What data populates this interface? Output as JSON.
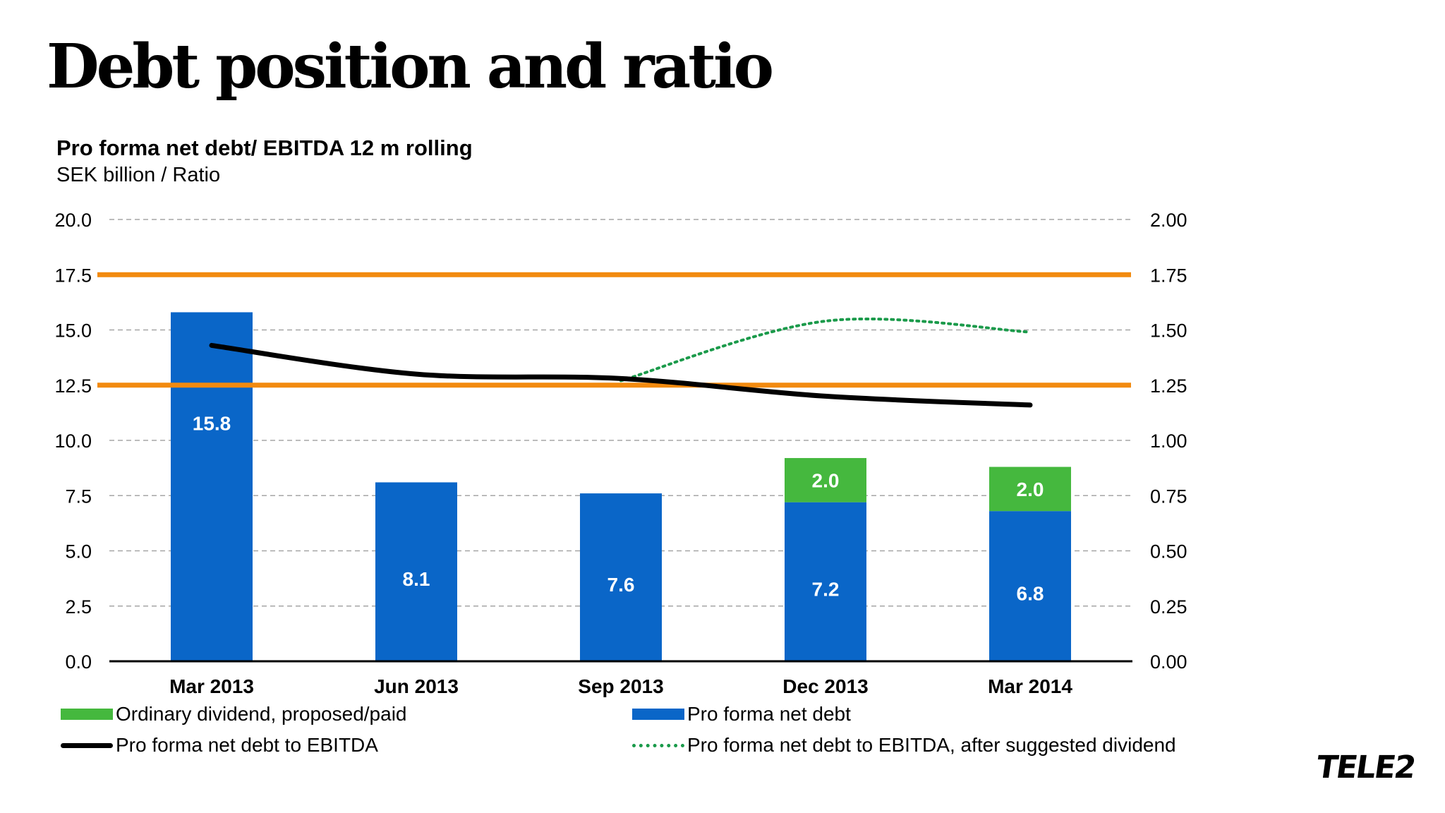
{
  "page": {
    "title": "Debt position and ratio",
    "logo_text": "TELE2"
  },
  "colors": {
    "net_debt": "#0a66c8",
    "dividend": "#45b83e",
    "ratio_line": "#000000",
    "ratio_after_dividend": "#1a9a4a",
    "threshold": "#f28a0f",
    "grid": "#a6a6a6"
  },
  "chart_data": {
    "type": "bar",
    "title": "Pro forma net debt/ EBITDA 12 m rolling",
    "subtitle": "SEK billion / Ratio",
    "categories": [
      "Mar 2013",
      "Jun 2013",
      "Sep 2013",
      "Dec 2013",
      "Mar 2014"
    ],
    "y_left": {
      "ylim": [
        0,
        20
      ],
      "ticks": [
        "0.0",
        "2.5",
        "5.0",
        "7.5",
        "10.0",
        "12.5",
        "15.0",
        "17.5",
        "20.0"
      ]
    },
    "y_right": {
      "ylim": [
        0,
        2
      ],
      "ticks": [
        "0.00",
        "0.25",
        "0.50",
        "0.75",
        "1.00",
        "1.25",
        "1.50",
        "1.75",
        "2.00"
      ]
    },
    "series": [
      {
        "name": "Pro forma net debt",
        "type": "bar",
        "axis": "left",
        "values": [
          15.8,
          8.1,
          7.6,
          7.2,
          6.8
        ],
        "labels": [
          "15.8",
          "8.1",
          "7.6",
          "7.2",
          "6.8"
        ]
      },
      {
        "name": "Ordinary dividend, proposed/paid",
        "type": "bar_stacked",
        "axis": "left",
        "values": [
          null,
          null,
          null,
          2.0,
          2.0
        ],
        "labels": [
          "",
          "",
          "",
          "2.0",
          "2.0"
        ]
      },
      {
        "name": "Pro forma net debt to EBITDA",
        "type": "line",
        "axis": "right",
        "values": [
          1.43,
          1.3,
          1.28,
          1.2,
          1.16
        ]
      },
      {
        "name": "Pro forma net debt to EBITDA, after suggested dividend",
        "type": "line_dotted",
        "axis": "right",
        "values": [
          null,
          null,
          1.27,
          1.54,
          1.49
        ]
      }
    ],
    "reference_lines": [
      {
        "axis": "right",
        "value": 1.75
      },
      {
        "axis": "right",
        "value": 1.25
      }
    ],
    "legend": [
      "Ordinary dividend, proposed/paid",
      "Pro forma net debt",
      "Pro forma net debt to EBITDA",
      "Pro forma net debt to EBITDA, after suggested dividend"
    ],
    "legend_position": "bottom",
    "grid": true
  }
}
